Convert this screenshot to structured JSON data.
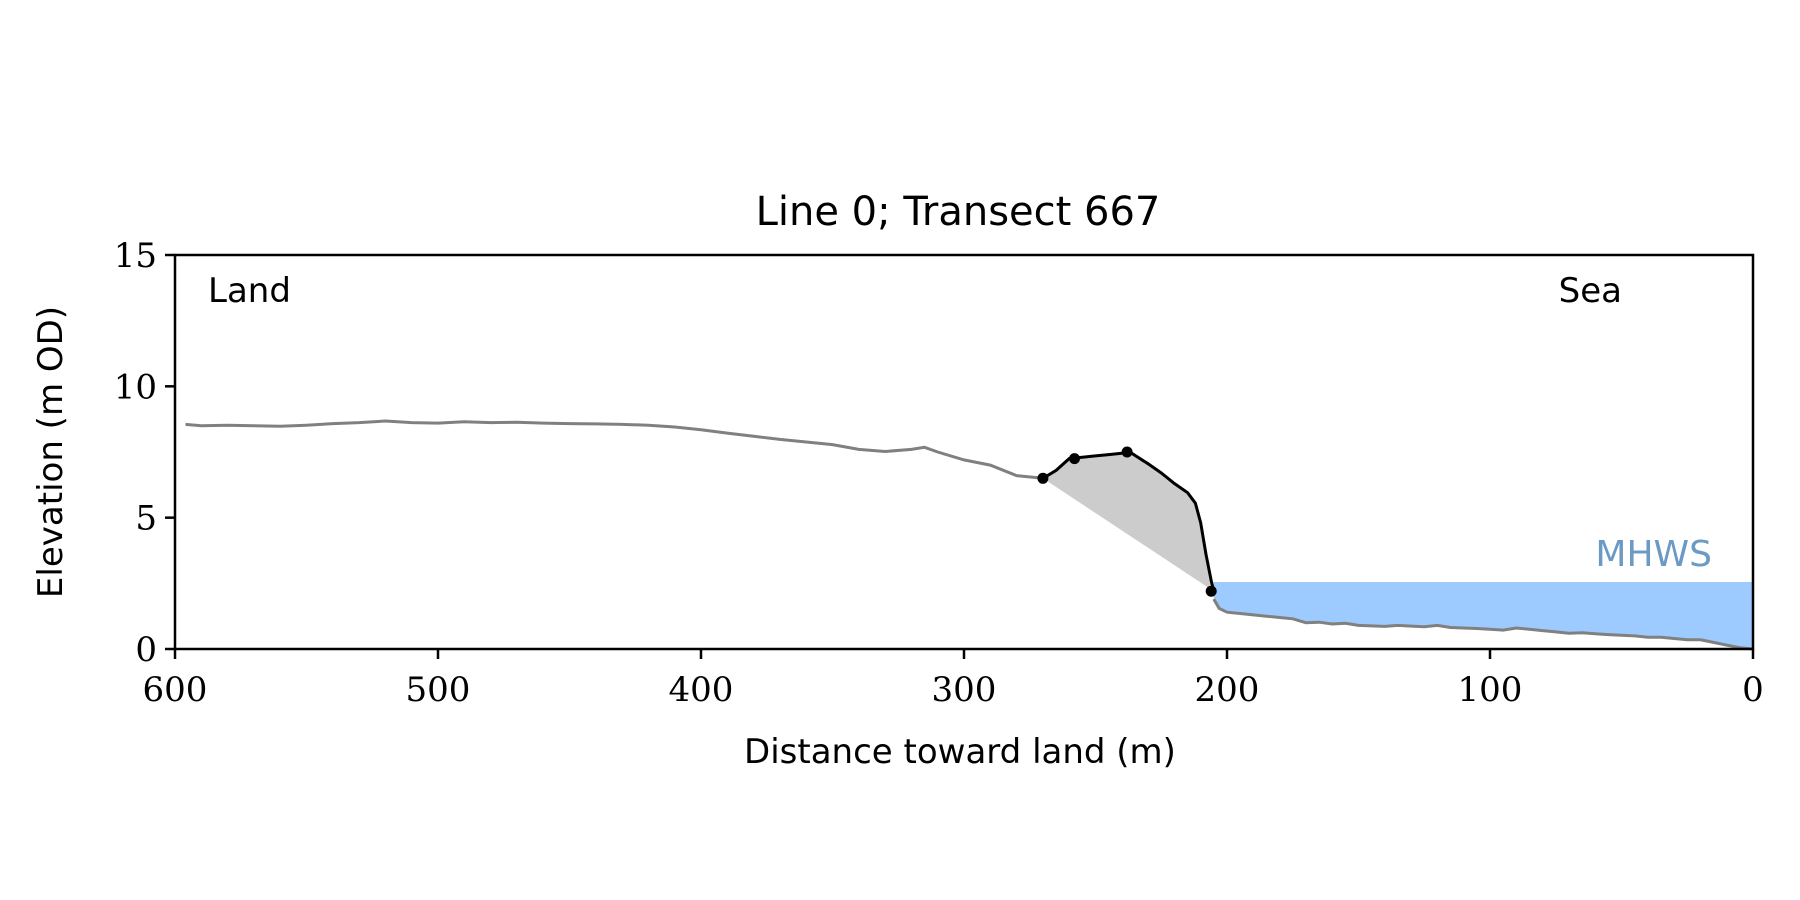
{
  "chart_data": {
    "type": "line",
    "title": "Line 0; Transect 667",
    "xlabel": "Distance toward land (m)",
    "ylabel": "Elevation (m OD)",
    "xlim": [
      600,
      0
    ],
    "ylim": [
      0,
      15
    ],
    "x_ticks": [
      600,
      500,
      400,
      300,
      200,
      100,
      0
    ],
    "y_ticks": [
      0,
      5,
      10,
      15
    ],
    "grid": false,
    "annotations": {
      "land": "Land",
      "sea": "Sea",
      "mhws": "MHWS"
    },
    "mhws_level": 2.55,
    "colors": {
      "profile": "#808080",
      "feature": "#000000",
      "fill": "#cccccc",
      "sea": "#9ecbff",
      "mhws_text": "#6b9ac4"
    },
    "series": [
      {
        "role": "ground-profile",
        "x": [
          596,
          590,
          580,
          570,
          560,
          550,
          540,
          530,
          520,
          510,
          500,
          490,
          480,
          470,
          460,
          450,
          440,
          430,
          420,
          410,
          400,
          390,
          380,
          370,
          360,
          350,
          340,
          330,
          320,
          315,
          310,
          300,
          290,
          280,
          270,
          260,
          250,
          240,
          230,
          220,
          210,
          205,
          203,
          200,
          195,
          190,
          185,
          180,
          175,
          170,
          165,
          160,
          155,
          150,
          145,
          140,
          135,
          130,
          125,
          120,
          115,
          110,
          105,
          100,
          95,
          90,
          85,
          80,
          75,
          70,
          65,
          60,
          55,
          50,
          45,
          40,
          35,
          30,
          25,
          20,
          15,
          10,
          5,
          0
        ],
        "y": [
          8.55,
          8.5,
          8.52,
          8.5,
          8.48,
          8.52,
          8.58,
          8.62,
          8.68,
          8.62,
          8.6,
          8.65,
          8.62,
          8.63,
          8.6,
          8.58,
          8.57,
          8.55,
          8.52,
          8.45,
          8.35,
          8.22,
          8.1,
          7.98,
          7.88,
          7.78,
          7.6,
          7.52,
          7.6,
          7.68,
          7.5,
          7.2,
          7.0,
          6.6,
          6.5,
          6.9,
          7.15,
          7.35,
          7.0,
          6.4,
          5.7,
          1.9,
          1.55,
          1.4,
          1.35,
          1.3,
          1.25,
          1.2,
          1.15,
          1.0,
          1.02,
          0.95,
          0.98,
          0.9,
          0.88,
          0.86,
          0.9,
          0.87,
          0.85,
          0.9,
          0.82,
          0.8,
          0.78,
          0.75,
          0.72,
          0.8,
          0.75,
          0.7,
          0.65,
          0.6,
          0.62,
          0.58,
          0.55,
          0.52,
          0.5,
          0.45,
          0.45,
          0.4,
          0.35,
          0.35,
          0.25,
          0.15,
          0.05,
          0.0
        ]
      },
      {
        "role": "dune-feature",
        "x": [
          270,
          265,
          260,
          255,
          250,
          245,
          240,
          237,
          230,
          225,
          220,
          215,
          212,
          210,
          208,
          206,
          205
        ],
        "y": [
          6.5,
          6.8,
          7.25,
          7.3,
          7.35,
          7.4,
          7.45,
          7.5,
          7.05,
          6.7,
          6.3,
          5.95,
          5.55,
          4.8,
          3.6,
          2.6,
          2.2
        ]
      }
    ],
    "key_points": [
      {
        "x": 270,
        "y": 6.5
      },
      {
        "x": 258,
        "y": 7.25
      },
      {
        "x": 238,
        "y": 7.5
      },
      {
        "x": 206,
        "y": 2.2
      }
    ]
  }
}
